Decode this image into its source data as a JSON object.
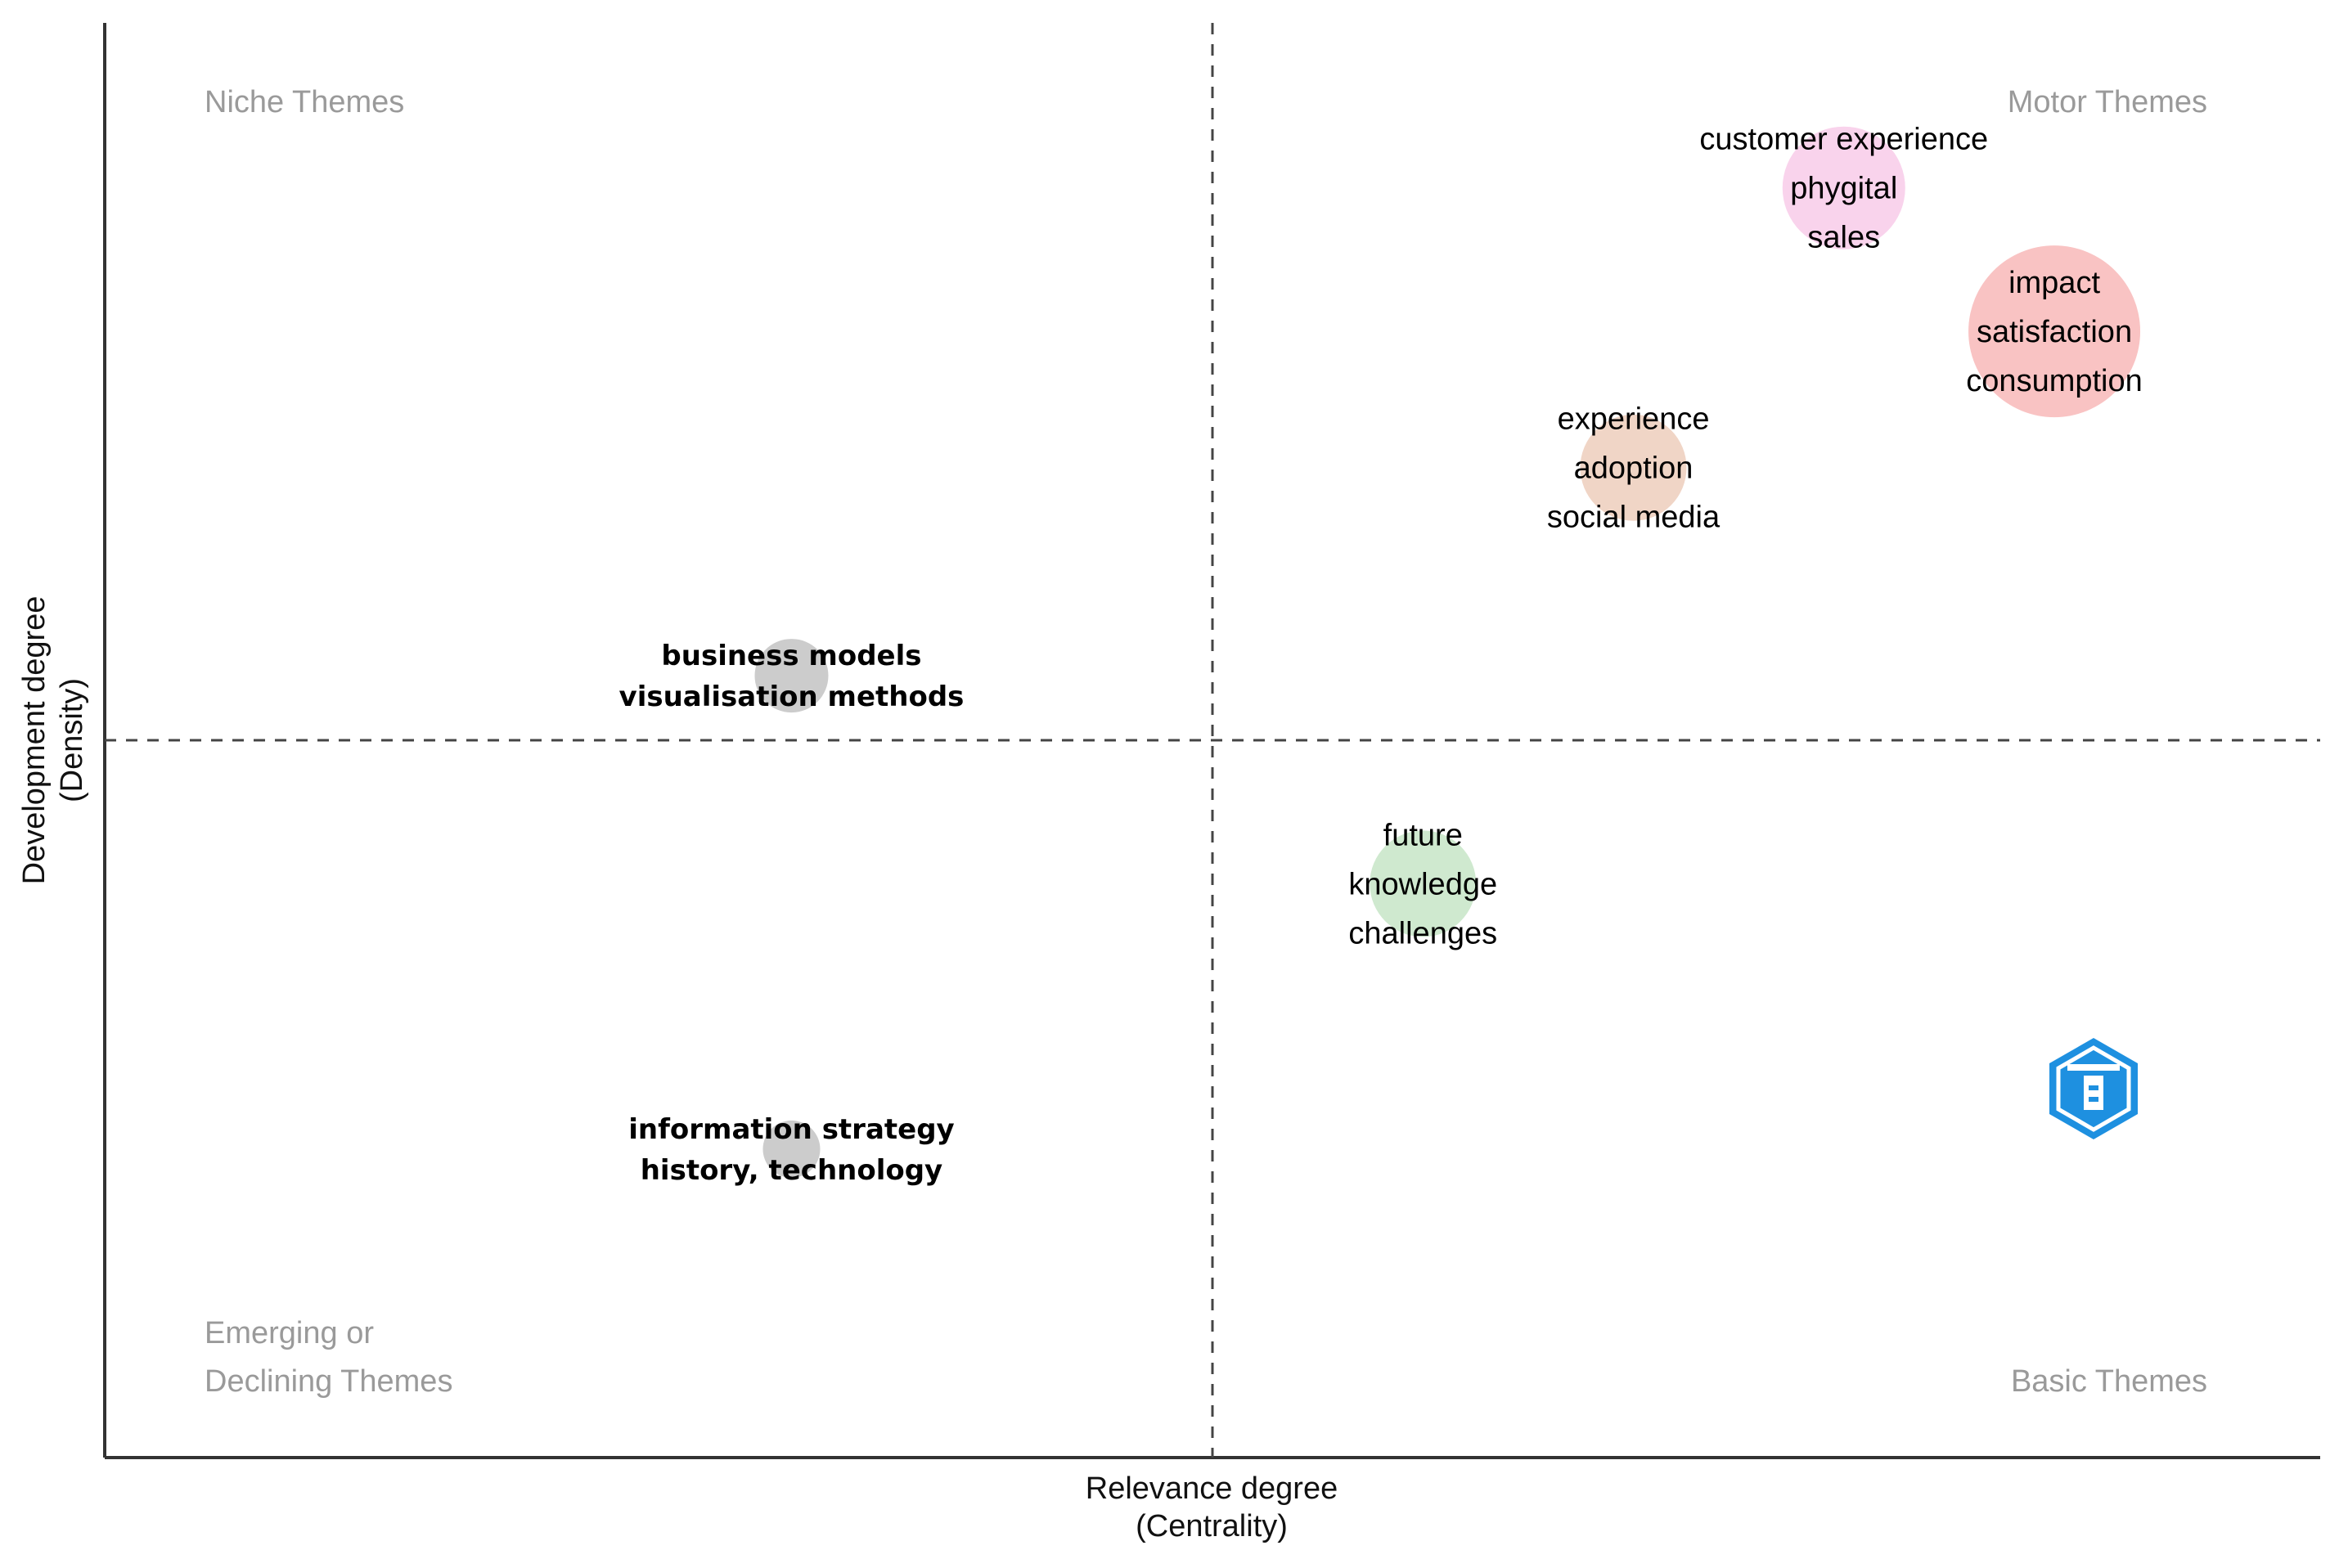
{
  "chart_data": {
    "type": "scatter",
    "xlabel": [
      "Relevance degree",
      "(Centrality)"
    ],
    "ylabel": [
      "Development degree",
      "(Density)"
    ],
    "quadrants": {
      "top_left": [
        "Niche Themes"
      ],
      "top_right": [
        "Motor Themes"
      ],
      "bottom_left": [
        "Emerging or",
        "Declining Themes"
      ],
      "bottom_right": [
        "Basic Themes"
      ]
    },
    "xlim": [
      0,
      1
    ],
    "ylim": [
      0,
      1
    ],
    "divider": {
      "x": 0.5,
      "y": 0.5
    },
    "grid": false,
    "logo_icon": "hexagon-logo-icon",
    "points": [
      {
        "labels": [
          "customer experience",
          "phygital",
          "sales"
        ],
        "x": 0.785,
        "y": 0.885,
        "size": 0.55,
        "color": "#f9d3ec",
        "style": "normal"
      },
      {
        "labels": [
          "impact",
          "satisfaction",
          "consumption"
        ],
        "x": 0.88,
        "y": 0.785,
        "size": 0.85,
        "color": "#f9c3c3",
        "style": "normal"
      },
      {
        "labels": [
          "experience",
          "adoption",
          "social media"
        ],
        "x": 0.69,
        "y": 0.69,
        "size": 0.45,
        "color": "#f0d5c6",
        "style": "normal"
      },
      {
        "labels": [
          "business models",
          "visualisation methods"
        ],
        "x": 0.31,
        "y": 0.545,
        "size": 0.25,
        "color": "#cccccc",
        "style": "bold"
      },
      {
        "labels": [
          "future",
          "knowledge",
          "challenges"
        ],
        "x": 0.595,
        "y": 0.4,
        "size": 0.45,
        "color": "#cfe9cf",
        "style": "normal"
      },
      {
        "labels": [
          "information strategy",
          "history, technology"
        ],
        "x": 0.31,
        "y": 0.215,
        "size": 0.15,
        "color": "#cccccc",
        "style": "bold"
      }
    ]
  }
}
